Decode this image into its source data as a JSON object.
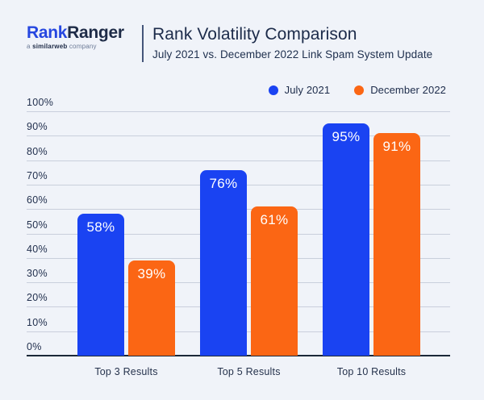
{
  "header": {
    "logo": {
      "part1": "Rank",
      "part2": "Ranger",
      "tagline_a": "a ",
      "tagline_brand": "similarweb",
      "tagline_rest": " company"
    },
    "title": "Rank Volatility Comparison",
    "subtitle": "July 2021 vs. December 2022 Link Spam System Update"
  },
  "colors": {
    "background": "#F0F3F9",
    "blue": "#1A43F2",
    "orange": "#FB6614",
    "grid": "#C9CFDC",
    "axis": "#1B2838",
    "text_dark": "#1C2B4A",
    "logo_blue": "#2647E0",
    "logo_navy": "#1E2B47"
  },
  "legend": [
    {
      "label": "July 2021",
      "color": "#1A43F2"
    },
    {
      "label": "December 2022",
      "color": "#FB6614"
    }
  ],
  "chart_data": {
    "type": "bar",
    "categories": [
      "Top 3 Results",
      "Top 5 Results",
      "Top 10 Results"
    ],
    "series": [
      {
        "name": "July 2021",
        "color": "#1A43F2",
        "values": [
          58,
          76,
          95
        ]
      },
      {
        "name": "December 2022",
        "color": "#FB6614",
        "values": [
          39,
          61,
          91
        ]
      }
    ],
    "value_labels": [
      [
        "58%",
        "76%",
        "95%"
      ],
      [
        "39%",
        "61%",
        "91%"
      ]
    ],
    "value_suffix": "%",
    "ylim": [
      0,
      100
    ],
    "ytick_step": 10,
    "ytick_labels": [
      "0%",
      "10%",
      "20%",
      "30%",
      "40%",
      "50%",
      "60%",
      "70%",
      "80%",
      "90%",
      "100%"
    ],
    "grid": true,
    "legend_position": "top-right"
  }
}
